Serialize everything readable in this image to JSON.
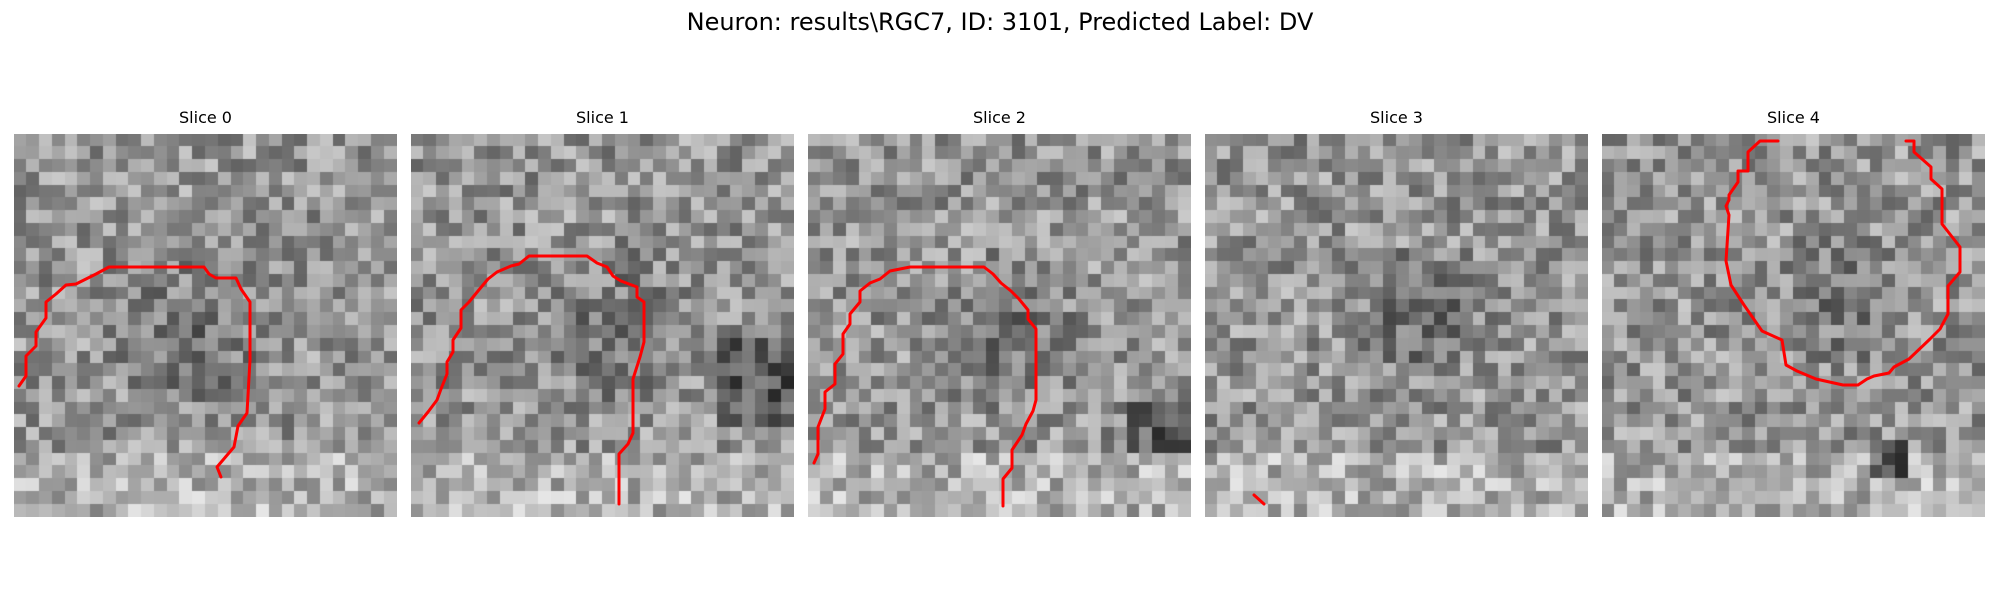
{
  "figure": {
    "title": "Neuron: results\\RGC7, ID: 3101, Predicted Label: DV"
  },
  "slices": [
    {
      "label": "Slice 0",
      "tone": "slice-0",
      "outline_color": "#ff0000"
    },
    {
      "label": "Slice 1",
      "tone": "slice-1",
      "outline_color": "#ff0000"
    },
    {
      "label": "Slice 2",
      "tone": "slice-2",
      "outline_color": "#ff0000"
    },
    {
      "label": "Slice 3",
      "tone": "slice-3",
      "outline_color": "#ff0000"
    },
    {
      "label": "Slice 4",
      "tone": "slice-4",
      "outline_color": "#ff0000"
    }
  ]
}
